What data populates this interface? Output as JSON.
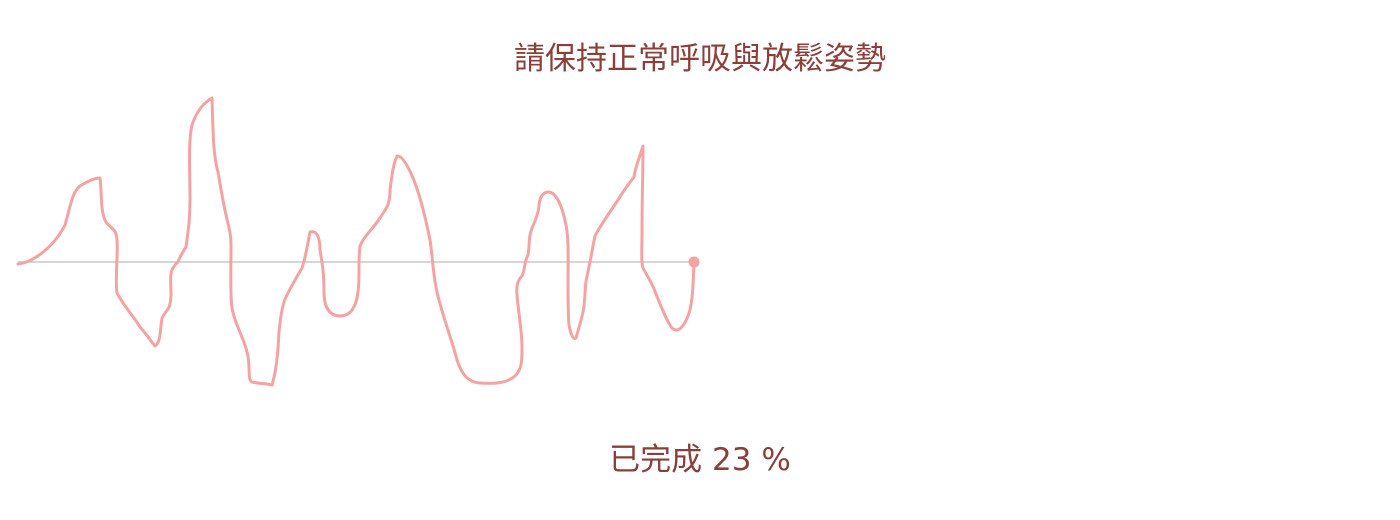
{
  "instruction": "請保持正常呼吸與放鬆姿勢",
  "progress": {
    "prefix": "已完成",
    "value": 23,
    "suffix": "%"
  },
  "colors": {
    "text": "#8b3f3a",
    "waveform": "#f4a3a3",
    "baseline": "#c8c8c8"
  }
}
